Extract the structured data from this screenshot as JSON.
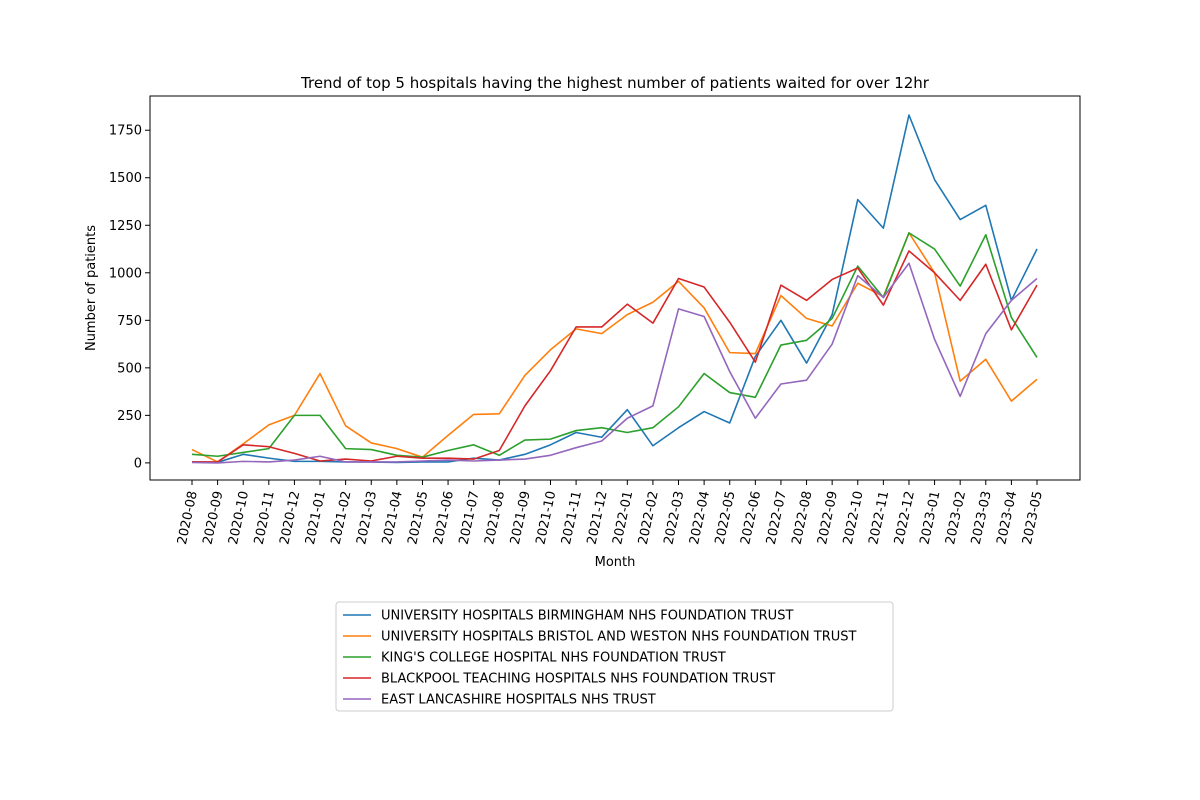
{
  "chart_data": {
    "type": "line",
    "title": "Trend of top 5 hospitals having the highest number of patients waited for over 12hr",
    "xlabel": "Month",
    "ylabel": "Number of patients",
    "ylim": [
      -90,
      1930
    ],
    "yticks": [
      0,
      250,
      500,
      750,
      1000,
      1250,
      1500,
      1750
    ],
    "grid": false,
    "legend_position": "bottom-center",
    "categories": [
      "2020-08",
      "2020-09",
      "2020-10",
      "2020-11",
      "2020-12",
      "2021-01",
      "2021-02",
      "2021-03",
      "2021-04",
      "2021-05",
      "2021-06",
      "2021-07",
      "2021-08",
      "2021-09",
      "2021-10",
      "2021-11",
      "2021-12",
      "2022-01",
      "2022-02",
      "2022-03",
      "2022-04",
      "2022-05",
      "2022-06",
      "2022-07",
      "2022-08",
      "2022-09",
      "2022-10",
      "2022-11",
      "2022-12",
      "2023-01",
      "2023-02",
      "2023-03",
      "2023-04",
      "2023-05"
    ],
    "series": [
      {
        "name": "UNIVERSITY HOSPITALS BIRMINGHAM NHS FOUNDATION TRUST",
        "color": "#1f77b4",
        "values": [
          5,
          3,
          45,
          25,
          8,
          8,
          5,
          5,
          2,
          5,
          5,
          25,
          15,
          45,
          95,
          160,
          135,
          280,
          90,
          185,
          270,
          210,
          560,
          750,
          525,
          780,
          1385,
          1235,
          1830,
          1490,
          1280,
          1355,
          855,
          1125
        ]
      },
      {
        "name": "UNIVERSITY HOSPITALS BRISTOL AND WESTON NHS FOUNDATION TRUST",
        "color": "#ff7f0e",
        "values": [
          70,
          5,
          100,
          200,
          250,
          470,
          195,
          105,
          75,
          30,
          145,
          255,
          258,
          460,
          595,
          705,
          680,
          780,
          845,
          955,
          815,
          580,
          575,
          880,
          760,
          720,
          945,
          875,
          1210,
          1000,
          430,
          545,
          325,
          440
        ]
      },
      {
        "name": "KING'S COLLEGE HOSPITAL NHS FOUNDATION TRUST",
        "color": "#2ca02c",
        "values": [
          45,
          35,
          55,
          75,
          250,
          250,
          75,
          70,
          40,
          30,
          65,
          95,
          40,
          120,
          125,
          170,
          185,
          160,
          185,
          295,
          470,
          370,
          345,
          620,
          645,
          760,
          1035,
          870,
          1210,
          1125,
          930,
          1200,
          765,
          555
        ]
      },
      {
        "name": "BLACKPOOL TEACHING HOSPITALS NHS FOUNDATION TRUST",
        "color": "#d62728",
        "values": [
          5,
          5,
          95,
          85,
          50,
          10,
          20,
          10,
          35,
          25,
          25,
          20,
          65,
          300,
          485,
          715,
          715,
          835,
          735,
          970,
          925,
          740,
          530,
          935,
          855,
          965,
          1025,
          830,
          1115,
          1000,
          855,
          1045,
          700,
          935
        ]
      },
      {
        "name": "EAST LANCASHIRE HOSPITALS NHS TRUST",
        "color": "#9467bd",
        "values": [
          2,
          0,
          8,
          5,
          15,
          35,
          5,
          5,
          5,
          10,
          15,
          10,
          15,
          20,
          40,
          80,
          115,
          235,
          300,
          810,
          770,
          480,
          235,
          415,
          435,
          625,
          985,
          870,
          1050,
          650,
          350,
          680,
          855,
          970
        ]
      }
    ]
  }
}
